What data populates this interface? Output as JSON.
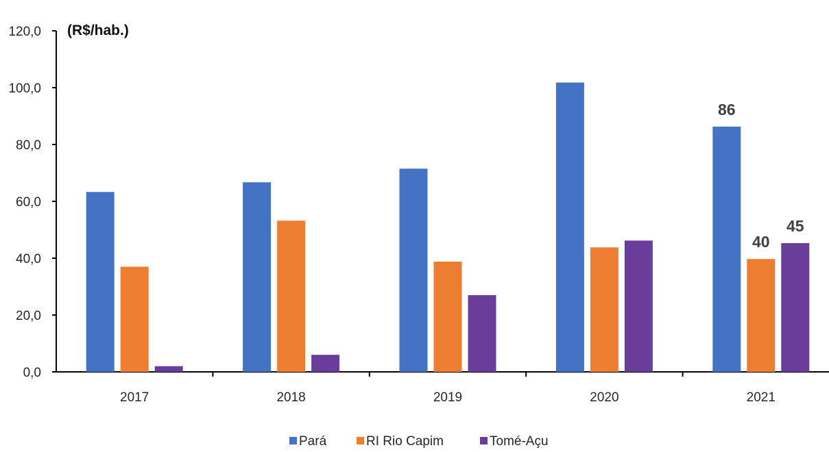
{
  "chart_data": {
    "type": "bar",
    "title": "",
    "ylabel": "(R$/hab.)",
    "xlabel": "",
    "ylim": [
      0,
      120
    ],
    "yticks": [
      "0,0",
      "20,0",
      "40,0",
      "60,0",
      "80,0",
      "100,0",
      "120,0"
    ],
    "ytick_values": [
      0,
      20,
      40,
      60,
      80,
      100,
      120
    ],
    "categories": [
      "2017",
      "2018",
      "2019",
      "2020",
      "2021"
    ],
    "series": [
      {
        "name": "Pará",
        "color": "#4472C4",
        "values": [
          63.3,
          66.7,
          71.5,
          101.8,
          86.3
        ]
      },
      {
        "name": "RI Rio Capim",
        "color": "#ED7D31",
        "values": [
          37.0,
          53.2,
          38.8,
          43.8,
          39.7
        ]
      },
      {
        "name": "Tomé-Açu",
        "color": "#6A3D9A",
        "values": [
          2.0,
          6.0,
          27.0,
          46.2,
          45.3
        ]
      }
    ],
    "data_labels": [
      {
        "series": 0,
        "category": 4,
        "text": "86"
      },
      {
        "series": 1,
        "category": 4,
        "text": "40"
      },
      {
        "series": 2,
        "category": 4,
        "text": "45"
      }
    ],
    "grid": false,
    "legend_position": "bottom-center"
  }
}
